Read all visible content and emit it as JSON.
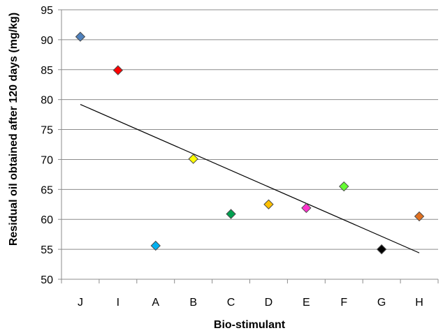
{
  "chart_data": {
    "type": "scatter",
    "title": "",
    "xlabel": "Bio-stimulant",
    "ylabel": "Residual oil  obtained after 120 days (mg/kg)",
    "categories": [
      "J",
      "I",
      "A",
      "B",
      "C",
      "D",
      "E",
      "F",
      "G",
      "H"
    ],
    "values": [
      90.5,
      84.9,
      55.6,
      70.1,
      60.9,
      62.5,
      61.9,
      65.5,
      55.0,
      60.5
    ],
    "marker_colors": [
      "#4f81bd",
      "#ff0000",
      "#00b0f0",
      "#ffff00",
      "#00a050",
      "#ffc000",
      "#ff33cc",
      "#66ff33",
      "#000000",
      "#e07020"
    ],
    "ylim": [
      50,
      95
    ],
    "yticks": [
      50,
      55,
      60,
      65,
      70,
      75,
      80,
      85,
      90,
      95
    ],
    "grid": true,
    "trendline": {
      "type": "linear",
      "start": 79.2,
      "end": 54.4
    },
    "legend": "none"
  }
}
